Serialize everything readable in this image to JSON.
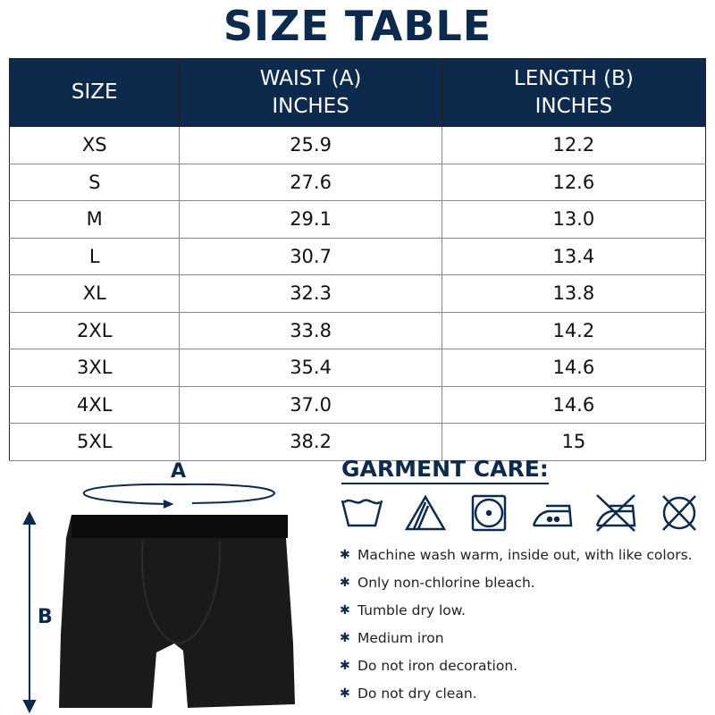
{
  "title": "SIZE TABLE",
  "table": {
    "headers": [
      [
        "SIZE"
      ],
      [
        "WAIST (A)",
        "INCHES"
      ],
      [
        "LENGTH (B)",
        "INCHES"
      ]
    ],
    "rows": [
      [
        "XS",
        "25.9",
        "12.2"
      ],
      [
        "S",
        "27.6",
        "12.6"
      ],
      [
        "M",
        "29.1",
        "13.0"
      ],
      [
        "L",
        "30.7",
        "13.4"
      ],
      [
        "XL",
        "32.3",
        "13.8"
      ],
      [
        "2XL",
        "33.8",
        "14.2"
      ],
      [
        "3XL",
        "35.4",
        "14.6"
      ],
      [
        "4XL",
        "37.0",
        "14.6"
      ],
      [
        "5XL",
        "38.2",
        "15"
      ]
    ]
  },
  "diagram": {
    "label_a": "A",
    "label_b": "B"
  },
  "care": {
    "title": "GARMENT CARE:",
    "icons": [
      "machine-wash-icon",
      "non-chlorine-bleach-icon",
      "tumble-dry-low-icon",
      "iron-medium-icon",
      "do-not-iron-icon",
      "do-not-dry-clean-icon"
    ],
    "items": [
      "Machine wash warm, inside out, with like colors.",
      "Only non-chlorine bleach.",
      "Tumble dry low.",
      "Medium iron",
      "Do not iron decoration.",
      "Do not dry clean."
    ]
  },
  "colors": {
    "navy": "#0d2a4d"
  }
}
